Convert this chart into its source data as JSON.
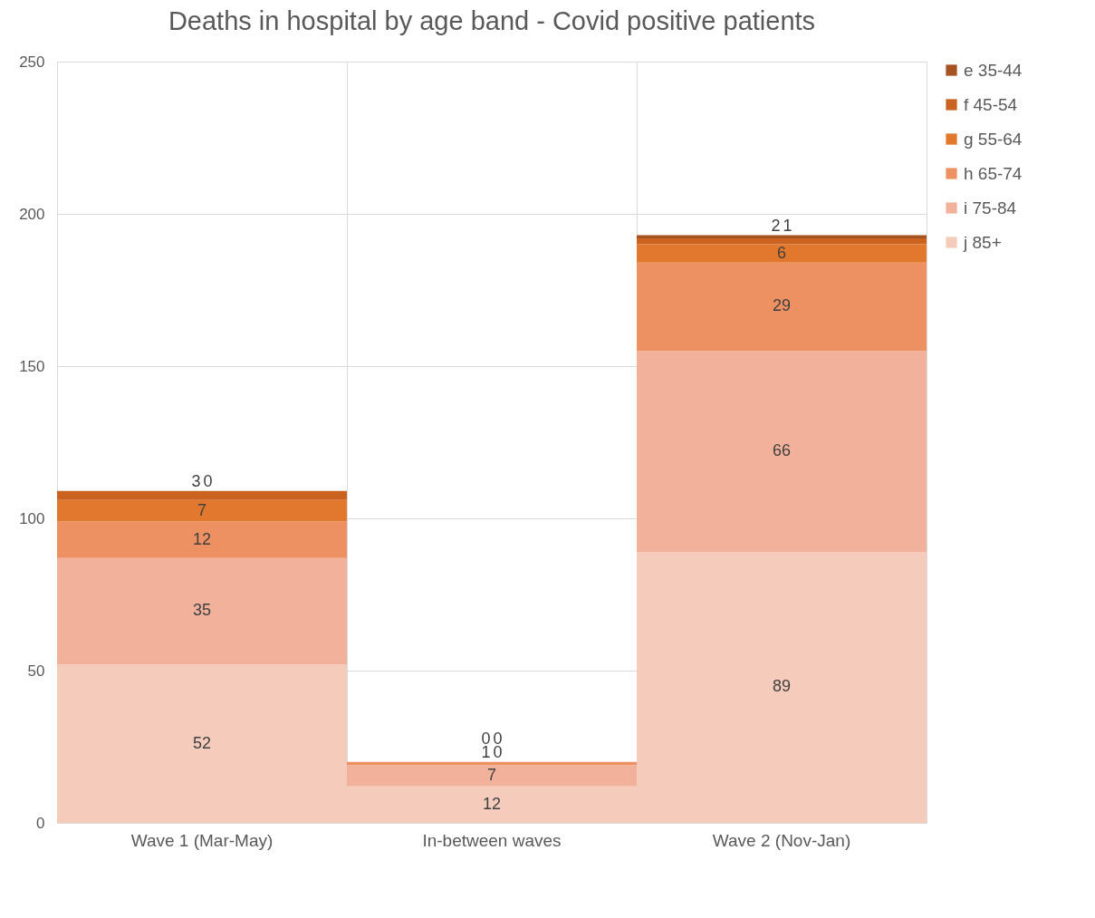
{
  "chart_data": {
    "type": "bar",
    "title": "Deaths in hospital by age band - Covid positive patients",
    "categories": [
      "Wave 1 (Mar-May)",
      "In-between waves",
      "Wave 2 (Nov-Jan)"
    ],
    "stacked": true,
    "series": [
      {
        "name": "j 85+",
        "color": "#f5cbbb",
        "values": [
          52,
          12,
          89
        ]
      },
      {
        "name": "i 75-84",
        "color": "#f2b19a",
        "values": [
          35,
          7,
          66
        ]
      },
      {
        "name": "h 65-74",
        "color": "#ee9162",
        "values": [
          12,
          1,
          29
        ]
      },
      {
        "name": "g 55-64",
        "color": "#e2772e",
        "values": [
          7,
          0,
          6
        ]
      },
      {
        "name": "f 45-54",
        "color": "#c9631f",
        "values": [
          3,
          0,
          2
        ]
      },
      {
        "name": "e 35-44",
        "color": "#a65321",
        "values": [
          0,
          0,
          1
        ]
      }
    ],
    "ylim": [
      0,
      250
    ],
    "yticks": [
      0,
      50,
      100,
      150,
      200,
      250
    ],
    "grid": true,
    "legend": "right",
    "data_labels": true
  }
}
